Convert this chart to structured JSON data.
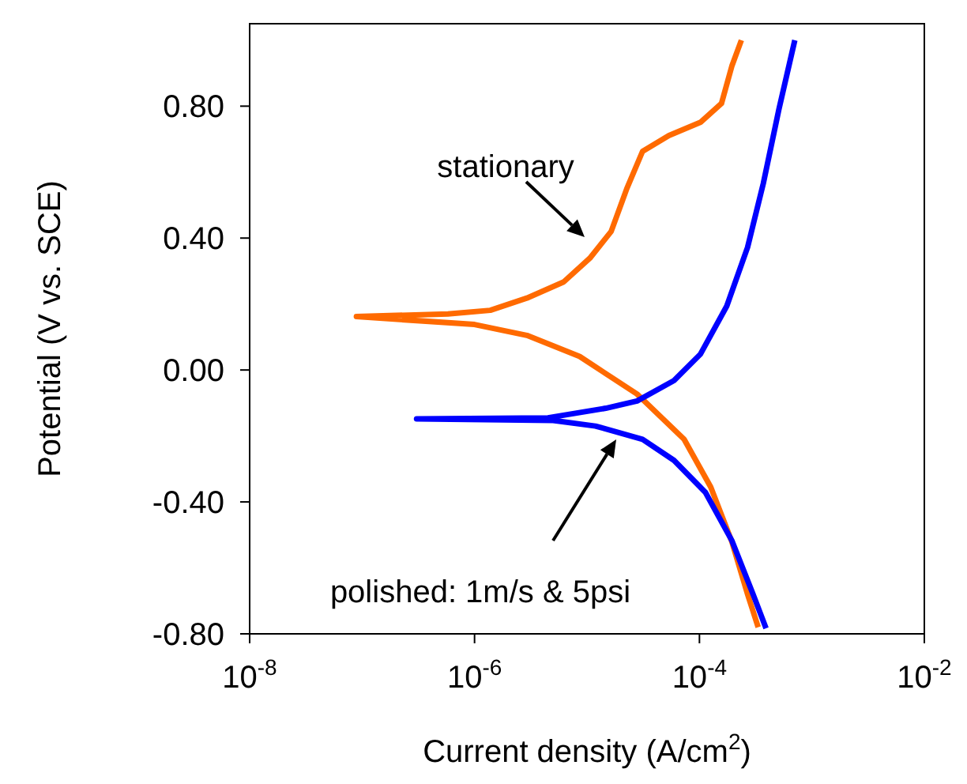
{
  "chart_data": {
    "type": "line",
    "xlabel": "Current density (A/cm$^{2}$)",
    "ylabel": "Potential (V vs. SCE)",
    "log": "x",
    "xlim": [
      1e-08,
      0.01
    ],
    "xticks": [
      {
        "value": 1e-08,
        "label": "10$^{-8}$"
      },
      {
        "value": 1e-06,
        "label": "10$^{-6}$"
      },
      {
        "value": 0.0001,
        "label": "10$^{-4}$"
      },
      {
        "value": 0.01,
        "label": "10$^{-2}$"
      }
    ],
    "ylim": [
      -0.8,
      1.05
    ],
    "yticks": [
      {
        "value": -0.8,
        "label": "-0.80"
      },
      {
        "value": -0.4,
        "label": "-0.40"
      },
      {
        "value": 0,
        "label": "0.00"
      },
      {
        "value": 0.4,
        "label": "0.40"
      },
      {
        "value": 0.8,
        "label": "0.80"
      }
    ],
    "line_style": "solid",
    "series": [
      {
        "color": "#ff6a00",
        "x": [
          0.000333,
          0.000268,
          0.000194,
          0.000126,
          7.3e-05,
          2.79e-05,
          8.6e-06,
          2.92e-06,
          1e-06,
          8.9e-08,
          5.8e-07,
          1.38e-06,
          2.92e-06,
          6.2e-06,
          1.06e-05,
          1.64e-05,
          2.26e-05,
          3.12e-05,
          5.35e-05,
          0.000102,
          0.000157,
          0.000194,
          0.000236
        ],
        "values": [
          -0.78,
          -0.68,
          -0.52,
          -0.355,
          -0.21,
          -0.073,
          0.041,
          0.105,
          0.138,
          0.162,
          0.17,
          0.181,
          0.218,
          0.267,
          0.339,
          0.42,
          0.55,
          0.663,
          0.711,
          0.751,
          0.808,
          0.921,
          1.0
        ]
      },
      {
        "color": "#0000ff",
        "x": [
          0.000391,
          0.000299,
          0.000194,
          0.000113,
          5.94e-05,
          3.12e-05,
          1.19e-05,
          5e-06,
          3.05e-07,
          4.5e-06,
          1.47e-05,
          2.79e-05,
          5.94e-05,
          0.000102,
          0.000175,
          0.000268,
          0.00037,
          0.00051,
          0.000705
        ],
        "values": [
          -0.783,
          -0.679,
          -0.517,
          -0.371,
          -0.274,
          -0.21,
          -0.17,
          -0.153,
          -0.148,
          -0.145,
          -0.116,
          -0.094,
          -0.032,
          0.048,
          0.194,
          0.372,
          0.566,
          0.792,
          1.0
        ]
      }
    ],
    "annotations": [
      "stationary",
      "polished: 1m/s & 5psi"
    ]
  }
}
